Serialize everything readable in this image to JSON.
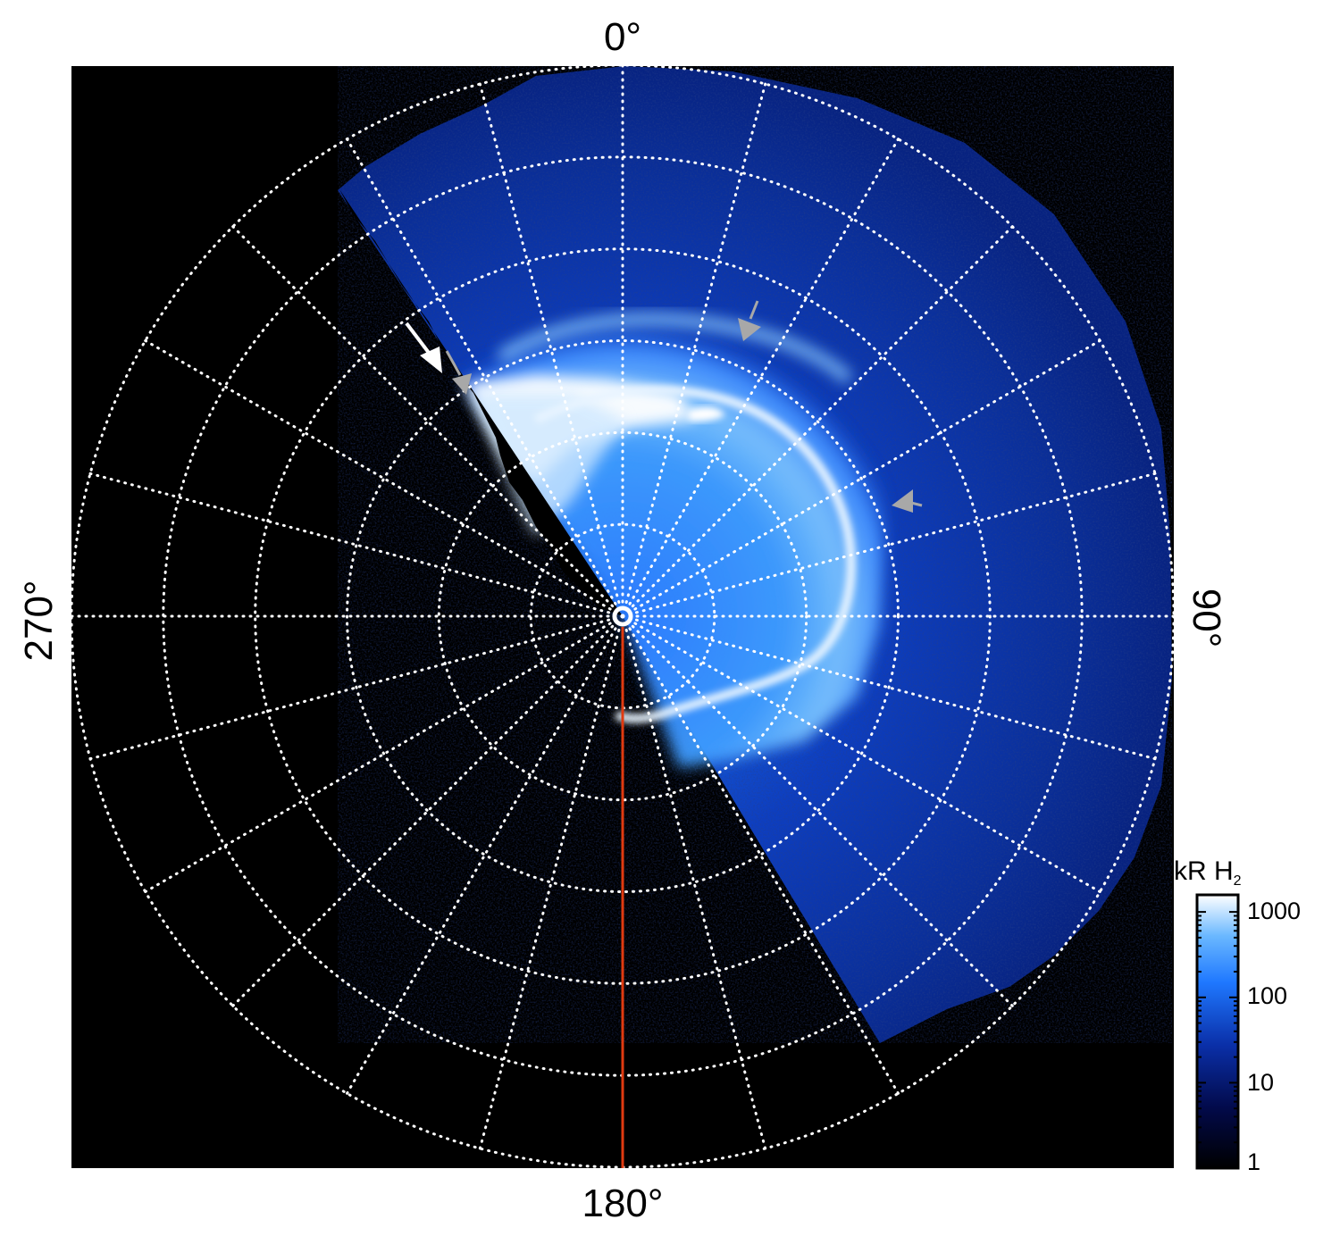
{
  "axis_labels": {
    "top": "0°",
    "right": "90°",
    "bottom": "180°",
    "left": "270°"
  },
  "colorbar": {
    "title_main": "kR H",
    "title_sub": "2",
    "scale": "log",
    "ticks": [
      "1000",
      "100",
      "10",
      "1"
    ],
    "colors": [
      "#000000",
      "#020a4a",
      "#0a2fa8",
      "#1f78ff",
      "#6ab8ff",
      "#ffffff"
    ]
  },
  "grid": {
    "style": "dotted",
    "color": "#ffffff"
  },
  "colors": {
    "background": "#000000",
    "aurora_bright": "#ffffff",
    "aurora_mid": "#3f9dff",
    "aurora_dark": "#0b2a9a",
    "meridian_line": "#e03a10",
    "arrow_white": "#ffffff",
    "arrow_gray": "#a8a8a8"
  }
}
